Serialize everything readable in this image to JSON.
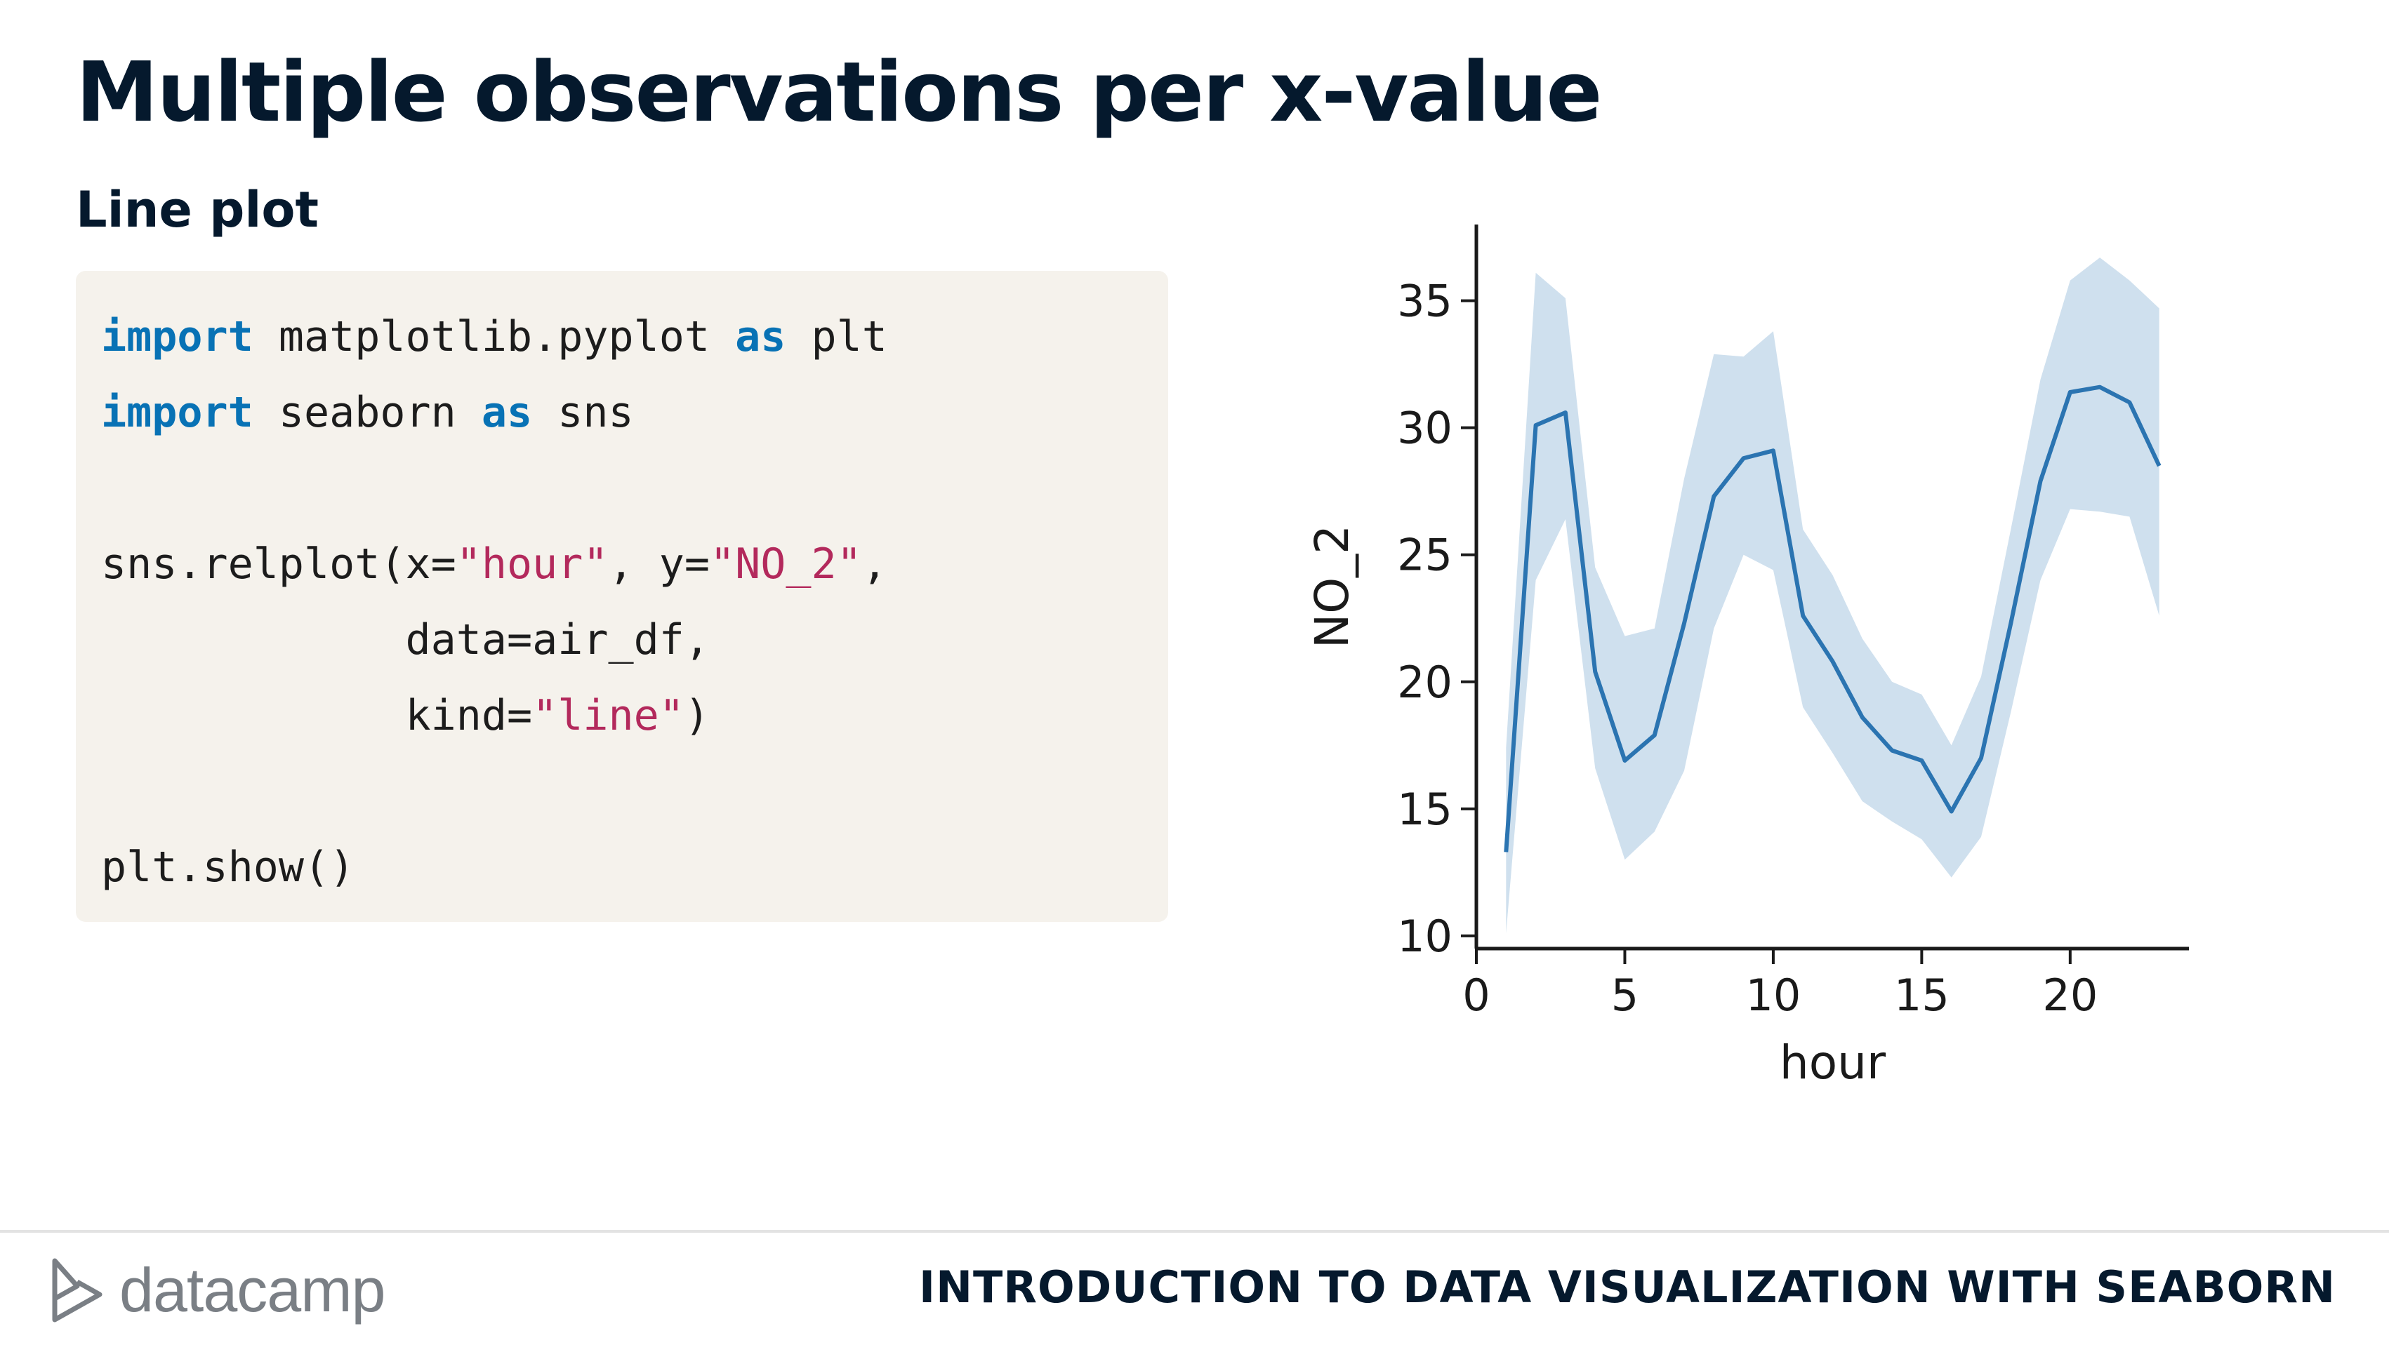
{
  "slide": {
    "title": "Multiple observations per x-value",
    "subtitle": "Line plot"
  },
  "code": {
    "lines": [
      [
        {
          "t": "import",
          "c": "kw"
        },
        {
          "t": " matplotlib.pyplot ",
          "c": ""
        },
        {
          "t": "as",
          "c": "kw"
        },
        {
          "t": " plt",
          "c": ""
        }
      ],
      [
        {
          "t": "import",
          "c": "kw"
        },
        {
          "t": " seaborn ",
          "c": ""
        },
        {
          "t": "as",
          "c": "kw"
        },
        {
          "t": " sns",
          "c": ""
        }
      ],
      [],
      [
        {
          "t": "sns.relplot(x=",
          "c": ""
        },
        {
          "t": "\"hour\"",
          "c": "str"
        },
        {
          "t": ", y=",
          "c": ""
        },
        {
          "t": "\"NO_2\"",
          "c": "str"
        },
        {
          "t": ",",
          "c": ""
        }
      ],
      [
        {
          "t": "            data=air_df,",
          "c": ""
        }
      ],
      [
        {
          "t": "            kind=",
          "c": ""
        },
        {
          "t": "\"line\"",
          "c": "str"
        },
        {
          "t": ")",
          "c": ""
        }
      ],
      [],
      [
        {
          "t": "plt.show()",
          "c": ""
        }
      ]
    ]
  },
  "chart_data": {
    "type": "line",
    "xlabel": "hour",
    "ylabel": "NO_2",
    "xlim": [
      0,
      24
    ],
    "ylim": [
      9.5,
      38
    ],
    "xticks": [
      0,
      5,
      10,
      15,
      20
    ],
    "yticks": [
      10,
      15,
      20,
      25,
      30,
      35
    ],
    "grid": false,
    "line_color": "#2b74b1",
    "band_color": "#cfe0ee",
    "series": [
      {
        "x": [
          1,
          2,
          3,
          4,
          5,
          6,
          7,
          8,
          9,
          10,
          11,
          12,
          13,
          14,
          15,
          16,
          17,
          18,
          19,
          20,
          21,
          22,
          23
        ],
        "values": [
          13.3,
          30.1,
          30.6,
          20.4,
          16.9,
          17.9,
          22.3,
          27.3,
          28.8,
          29.1,
          22.6,
          20.8,
          18.6,
          17.3,
          16.9,
          14.9,
          17.0,
          22.3,
          27.9,
          31.4,
          31.6,
          31.0,
          28.5
        ],
        "ci_lower": [
          10.1,
          24.0,
          26.4,
          16.6,
          13.0,
          14.1,
          16.5,
          22.1,
          25.0,
          24.4,
          19.0,
          17.2,
          15.3,
          14.5,
          13.8,
          12.3,
          13.9,
          18.8,
          24.0,
          26.8,
          26.7,
          26.5,
          22.6
        ],
        "ci_upper": [
          17.4,
          36.1,
          35.1,
          24.5,
          21.8,
          22.1,
          28.0,
          32.9,
          32.8,
          33.8,
          26.0,
          24.2,
          21.7,
          20.0,
          19.5,
          17.5,
          20.2,
          26.0,
          31.9,
          35.8,
          36.7,
          35.8,
          34.7
        ]
      }
    ]
  },
  "footer": {
    "brand": "datacamp",
    "course_title": "INTRODUCTION TO DATA VISUALIZATION WITH SEABORN",
    "logo_icon": "datacamp-logo-icon"
  }
}
